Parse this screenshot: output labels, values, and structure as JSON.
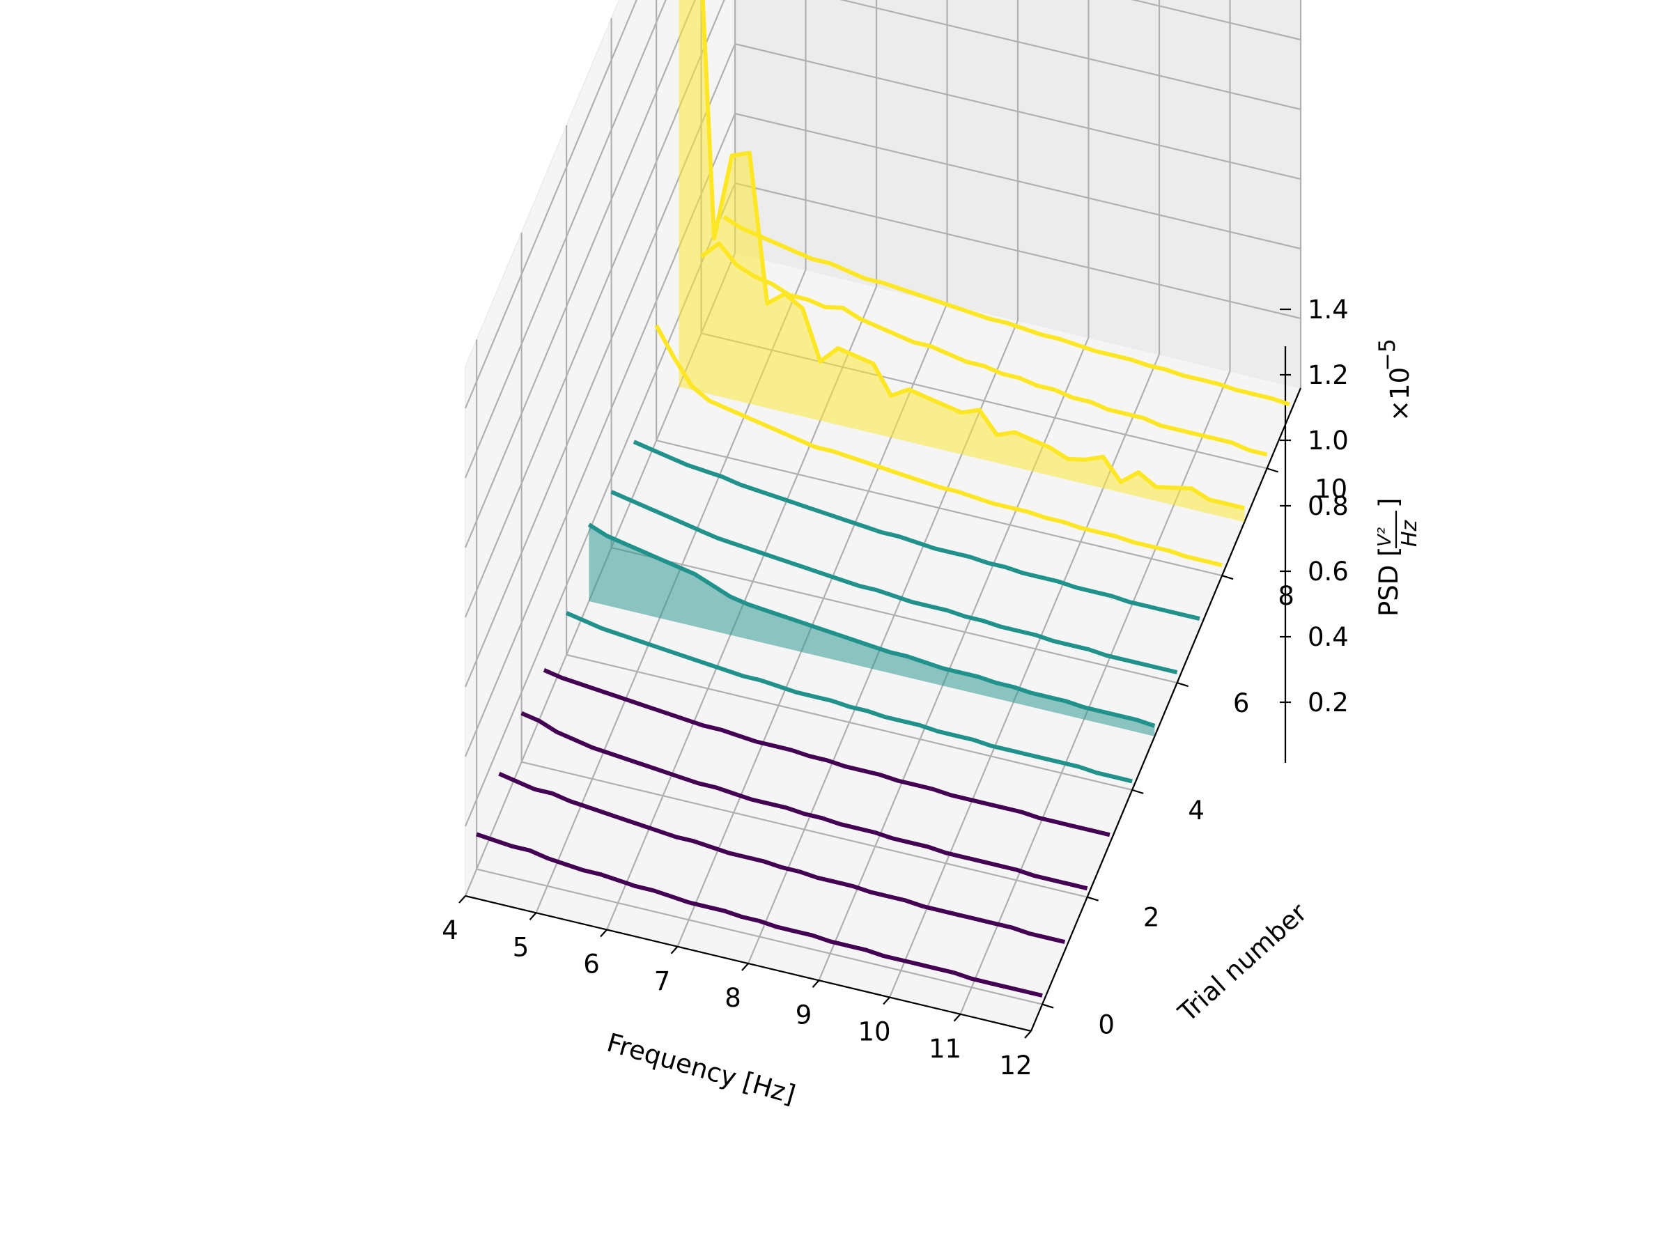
{
  "chart_data": {
    "type": "line",
    "projection": "3d waterfall",
    "xlabel": "Frequency [Hz]",
    "ylabel": "Trial number",
    "zlabel": "PSD [V²/Hz]",
    "zlabel_main": "PSD [",
    "zlabel_frac_num": "V²",
    "zlabel_frac_den": "Hz",
    "zlabel_close": "]",
    "z_multiplier_base": "×10",
    "z_multiplier_exp": "−5",
    "xlim": [
      4,
      12
    ],
    "ylim": [
      -0.5,
      11.5
    ],
    "zlim": [
      0,
      1.52
    ],
    "x_ticks": [
      "4",
      "5",
      "6",
      "7",
      "8",
      "9",
      "10",
      "11",
      "12"
    ],
    "y_ticks": [
      "0",
      "2",
      "4",
      "6",
      "8",
      "10"
    ],
    "z_ticks": [
      "0.2",
      "0.4",
      "0.6",
      "0.8",
      "1.0",
      "1.2",
      "1.4"
    ],
    "grid": true,
    "colors": {
      "low": "#440154",
      "mid": "#21918c",
      "high": "#fde725"
    },
    "x": [
      4.0,
      4.25,
      4.5,
      4.75,
      5.0,
      5.25,
      5.5,
      5.75,
      6.0,
      6.25,
      6.5,
      6.75,
      7.0,
      7.25,
      7.5,
      7.75,
      8.0,
      8.25,
      8.5,
      8.75,
      9.0,
      9.25,
      9.5,
      9.75,
      10.0,
      10.25,
      10.5,
      10.75,
      11.0,
      11.25,
      11.5,
      11.75,
      12.0
    ],
    "series": [
      {
        "trial": 0,
        "color": "#440154",
        "filled": false,
        "values": [
          0.1,
          0.095,
          0.09,
          0.09,
          0.08,
          0.075,
          0.07,
          0.07,
          0.065,
          0.06,
          0.06,
          0.055,
          0.05,
          0.05,
          0.05,
          0.045,
          0.045,
          0.04,
          0.04,
          0.04,
          0.035,
          0.035,
          0.035,
          0.03,
          0.03,
          0.03,
          0.03,
          0.03,
          0.025,
          0.025,
          0.025,
          0.025,
          0.025
        ]
      },
      {
        "trial": 1,
        "color": "#440154",
        "filled": false,
        "values": [
          0.12,
          0.11,
          0.1,
          0.1,
          0.09,
          0.085,
          0.08,
          0.075,
          0.07,
          0.065,
          0.06,
          0.06,
          0.055,
          0.05,
          0.05,
          0.05,
          0.045,
          0.045,
          0.04,
          0.04,
          0.04,
          0.035,
          0.035,
          0.035,
          0.03,
          0.03,
          0.03,
          0.03,
          0.03,
          0.03,
          0.025,
          0.025,
          0.025
        ]
      },
      {
        "trial": 2,
        "color": "#440154",
        "filled": false,
        "values": [
          0.14,
          0.13,
          0.11,
          0.1,
          0.09,
          0.085,
          0.08,
          0.075,
          0.07,
          0.065,
          0.06,
          0.06,
          0.055,
          0.05,
          0.05,
          0.05,
          0.045,
          0.045,
          0.04,
          0.04,
          0.04,
          0.035,
          0.035,
          0.035,
          0.03,
          0.03,
          0.03,
          0.03,
          0.03,
          0.025,
          0.025,
          0.025,
          0.025
        ]
      },
      {
        "trial": 3,
        "color": "#440154",
        "filled": false,
        "values": [
          0.11,
          0.1,
          0.095,
          0.09,
          0.085,
          0.08,
          0.075,
          0.07,
          0.065,
          0.06,
          0.06,
          0.055,
          0.05,
          0.05,
          0.05,
          0.045,
          0.045,
          0.04,
          0.04,
          0.04,
          0.035,
          0.035,
          0.035,
          0.03,
          0.03,
          0.03,
          0.03,
          0.03,
          0.025,
          0.025,
          0.025,
          0.025,
          0.025
        ]
      },
      {
        "trial": 4,
        "color": "#21918c",
        "filled": false,
        "values": [
          0.12,
          0.11,
          0.1,
          0.095,
          0.09,
          0.085,
          0.08,
          0.075,
          0.07,
          0.065,
          0.06,
          0.06,
          0.055,
          0.05,
          0.05,
          0.05,
          0.045,
          0.045,
          0.04,
          0.04,
          0.04,
          0.035,
          0.035,
          0.035,
          0.03,
          0.03,
          0.03,
          0.03,
          0.03,
          0.03,
          0.025,
          0.025,
          0.025
        ]
      },
      {
        "trial": 5,
        "color": "#21918c",
        "filled": true,
        "values": [
          0.22,
          0.2,
          0.19,
          0.18,
          0.17,
          0.16,
          0.15,
          0.13,
          0.11,
          0.1,
          0.095,
          0.09,
          0.085,
          0.08,
          0.075,
          0.07,
          0.065,
          0.06,
          0.06,
          0.055,
          0.05,
          0.05,
          0.05,
          0.045,
          0.045,
          0.04,
          0.04,
          0.04,
          0.035,
          0.035,
          0.035,
          0.035,
          0.03
        ]
      },
      {
        "trial": 6,
        "color": "#21918c",
        "filled": false,
        "values": [
          0.16,
          0.15,
          0.14,
          0.13,
          0.12,
          0.11,
          0.1,
          0.095,
          0.09,
          0.085,
          0.08,
          0.075,
          0.07,
          0.065,
          0.06,
          0.06,
          0.055,
          0.05,
          0.05,
          0.05,
          0.045,
          0.045,
          0.04,
          0.04,
          0.04,
          0.035,
          0.035,
          0.035,
          0.03,
          0.03,
          0.03,
          0.03,
          0.03
        ]
      },
      {
        "trial": 7,
        "color": "#21918c",
        "filled": false,
        "values": [
          0.15,
          0.14,
          0.13,
          0.12,
          0.115,
          0.11,
          0.1,
          0.095,
          0.09,
          0.085,
          0.08,
          0.075,
          0.07,
          0.065,
          0.06,
          0.06,
          0.055,
          0.05,
          0.05,
          0.05,
          0.045,
          0.045,
          0.04,
          0.04,
          0.04,
          0.035,
          0.035,
          0.035,
          0.03,
          0.03,
          0.03,
          0.03,
          0.03
        ]
      },
      {
        "trial": 8,
        "color": "#fde725",
        "filled": false,
        "values": [
          0.33,
          0.25,
          0.18,
          0.15,
          0.14,
          0.13,
          0.12,
          0.11,
          0.1,
          0.09,
          0.09,
          0.085,
          0.08,
          0.075,
          0.07,
          0.065,
          0.06,
          0.06,
          0.055,
          0.05,
          0.05,
          0.05,
          0.045,
          0.045,
          0.04,
          0.04,
          0.04,
          0.035,
          0.035,
          0.035,
          0.03,
          0.03,
          0.03
        ]
      },
      {
        "trial": 9,
        "color": "#fde725",
        "filled": true,
        "values": [
          1.4,
          1.5,
          0.45,
          0.7,
          0.72,
          0.3,
          0.34,
          0.31,
          0.17,
          0.22,
          0.21,
          0.2,
          0.12,
          0.15,
          0.14,
          0.13,
          0.12,
          0.14,
          0.08,
          0.1,
          0.09,
          0.08,
          0.06,
          0.07,
          0.09,
          0.03,
          0.07,
          0.04,
          0.05,
          0.06,
          0.04,
          0.04,
          0.04
        ]
      },
      {
        "trial": 10,
        "color": "#fde725",
        "filled": false,
        "values": [
          0.22,
          0.27,
          0.22,
          0.2,
          0.19,
          0.17,
          0.17,
          0.16,
          0.17,
          0.15,
          0.14,
          0.13,
          0.12,
          0.12,
          0.11,
          0.1,
          0.1,
          0.09,
          0.09,
          0.08,
          0.08,
          0.07,
          0.07,
          0.06,
          0.06,
          0.06,
          0.05,
          0.05,
          0.05,
          0.05,
          0.05,
          0.04,
          0.04
        ]
      },
      {
        "trial": 11,
        "color": "#fde725",
        "filled": false,
        "values": [
          0.18,
          0.16,
          0.15,
          0.14,
          0.13,
          0.12,
          0.12,
          0.11,
          0.1,
          0.1,
          0.095,
          0.09,
          0.085,
          0.08,
          0.075,
          0.07,
          0.07,
          0.065,
          0.06,
          0.06,
          0.055,
          0.05,
          0.05,
          0.05,
          0.045,
          0.045,
          0.04,
          0.04,
          0.04,
          0.035,
          0.035,
          0.035,
          0.03
        ]
      }
    ]
  }
}
